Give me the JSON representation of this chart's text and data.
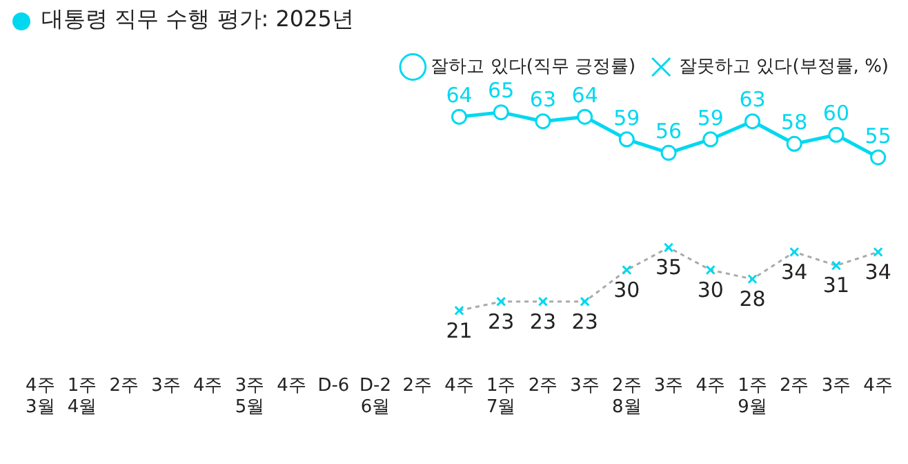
{
  "chart_data": {
    "type": "line",
    "title": "대통령 직무 수행 평가: 2025년",
    "categories": [
      "4주\n3월",
      "1주\n4월",
      "2주",
      "3주",
      "4주",
      "3주\n5월",
      "4주",
      "D-6",
      "D-2\n6월",
      "2주",
      "4주",
      "1주\n7월",
      "2주",
      "3주",
      "2주\n8월",
      "3주",
      "4주",
      "1주\n9월",
      "2주",
      "3주",
      "4주"
    ],
    "series": [
      {
        "name": "잘하고 있다(직무 긍정률)",
        "color": "#00d8f0",
        "marker": "circle",
        "line_style": "solid",
        "values": [
          null,
          null,
          null,
          null,
          null,
          null,
          null,
          null,
          null,
          null,
          64,
          65,
          63,
          64,
          59,
          56,
          59,
          63,
          58,
          60,
          55
        ]
      },
      {
        "name": "잘못하고 있다(부정률, %)",
        "color": "#aaaaaa",
        "marker": "cross",
        "line_style": "dashed",
        "values": [
          null,
          null,
          null,
          null,
          null,
          null,
          null,
          null,
          null,
          null,
          21,
          23,
          23,
          23,
          30,
          35,
          30,
          28,
          34,
          31,
          34
        ]
      }
    ],
    "tick_labels": "x",
    "grid": false,
    "legend": "top right",
    "data_labels": true
  }
}
